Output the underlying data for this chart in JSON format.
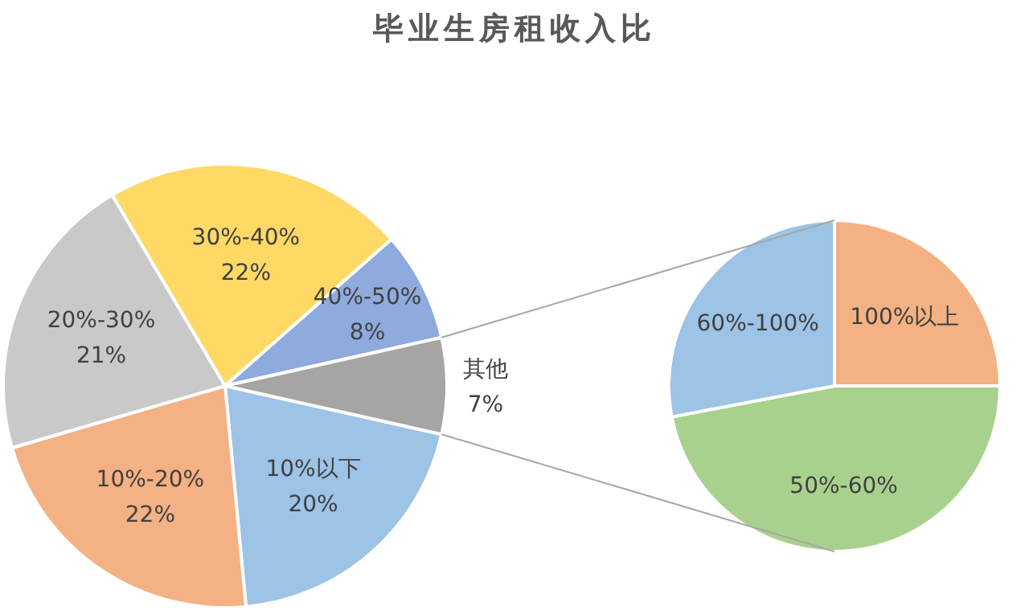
{
  "chart_data": [
    {
      "type": "pie",
      "title": "毕业生房租收入比",
      "categories": [
        "10%以下",
        "10%-20%",
        "20%-30%",
        "30%-40%",
        "40%-50%",
        "其他"
      ],
      "values": [
        20,
        22,
        21,
        22,
        8,
        7
      ],
      "value_labels": [
        "20%",
        "22%",
        "21%",
        "22%",
        "8%",
        "7%"
      ],
      "colors": [
        "#9dc3e6",
        "#f4b183",
        "#c9c9c9",
        "#ffd966",
        "#8faadc",
        "#a5a5a5"
      ]
    },
    {
      "type": "pie",
      "categories": [
        "100%以上",
        "50%-60%",
        "60%-100%"
      ],
      "values": [
        25,
        47,
        28
      ],
      "colors": [
        "#f4b183",
        "#a9d18e",
        "#9dc3e6"
      ]
    }
  ]
}
